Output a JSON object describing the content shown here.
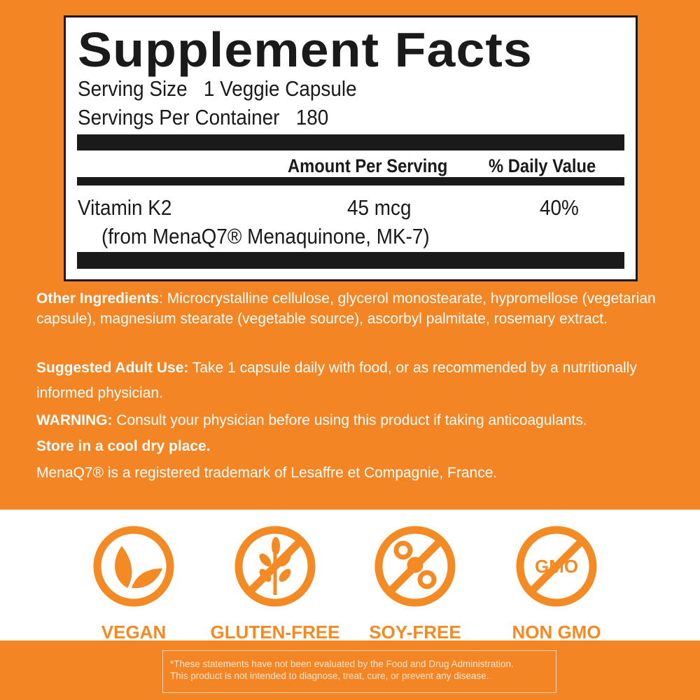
{
  "label": {
    "title": "Supplement Facts",
    "serving_size": "Serving Size   1 Veggie Capsule",
    "servings_per_container": "Servings Per Container   180",
    "col_amount": "Amount Per Serving",
    "col_dv": "% Daily Value",
    "nutrient": {
      "name": "Vitamin K2",
      "source": "(from MenaQ7® Menaquinone, MK-7)",
      "amount": "45 mcg",
      "dv": "40%"
    }
  },
  "info": {
    "other_label": "Other Ingredients",
    "other_text": ": Microcrystalline cellulose, glycerol monostearate, hypromellose (vegetarian capsule), magnesium stearate (vegetable source), ascorbyl palmitate, rosemary extract.",
    "use_label": "Suggested Adult Use:",
    "use_text": " Take 1 capsule daily with food, or as recommended by a nutritionally informed physician.",
    "warning_label": "WARNING:",
    "warning_text": " Consult your physician before using this product if taking anticoagulants.",
    "store": "Store in a cool dry place.",
    "trademark": "MenaQ7® is a registered trademark of Lesaffre et Compagnie, France."
  },
  "badges": [
    {
      "label": "VEGAN",
      "icon": "leaf-icon"
    },
    {
      "label": "GLUTEN-FREE",
      "icon": "wheat-crossed-icon"
    },
    {
      "label": "SOY-FREE",
      "icon": "soy-crossed-icon"
    },
    {
      "label": "NON GMO",
      "icon": "gmo-crossed-icon",
      "icon_text": "GMO"
    }
  ],
  "disclaimer": {
    "line1": "*These statements have not been evaluated by the Food and Drug Administration.",
    "line2": "This product is not intended to diagnose, treat, cure, or prevent any disease."
  },
  "colors": {
    "orange": "#f48524",
    "black": "#1a1a1a",
    "white": "#ffffff"
  }
}
